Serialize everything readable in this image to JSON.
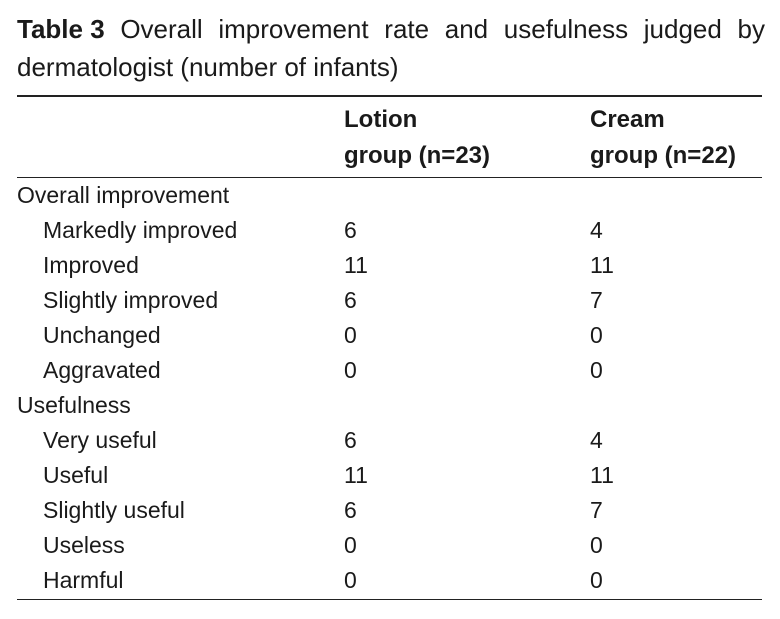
{
  "caption": {
    "label": "Table 3",
    "line1_rest": [
      "Overall",
      "improvement",
      "rate",
      "and",
      "usefulness",
      "judged",
      "by"
    ],
    "line2": "dermatologist (number of infants)"
  },
  "columns": {
    "lotion_line1": "Lotion",
    "lotion_line2": "group (n=23)",
    "cream_line1": "Cream",
    "cream_line2": "group (n=22)"
  },
  "rows": [
    {
      "label": "Overall improvement",
      "lotion": "",
      "cream": ""
    },
    {
      "label": "Markedly improved",
      "lotion": "6",
      "cream": "4"
    },
    {
      "label": "Improved",
      "lotion": "11",
      "cream": "11"
    },
    {
      "label": "Slightly improved",
      "lotion": "6",
      "cream": "7"
    },
    {
      "label": "Unchanged",
      "lotion": "0",
      "cream": "0"
    },
    {
      "label": "Aggravated",
      "lotion": "0",
      "cream": "0"
    },
    {
      "label": "Usefulness",
      "lotion": "",
      "cream": ""
    },
    {
      "label": "Very useful",
      "lotion": "6",
      "cream": "4"
    },
    {
      "label": "Useful",
      "lotion": "11",
      "cream": "11"
    },
    {
      "label": "Slightly useful",
      "lotion": "6",
      "cream": "7"
    },
    {
      "label": "Useless",
      "lotion": "0",
      "cream": "0"
    },
    {
      "label": "Harmful",
      "lotion": "0",
      "cream": "0"
    }
  ]
}
